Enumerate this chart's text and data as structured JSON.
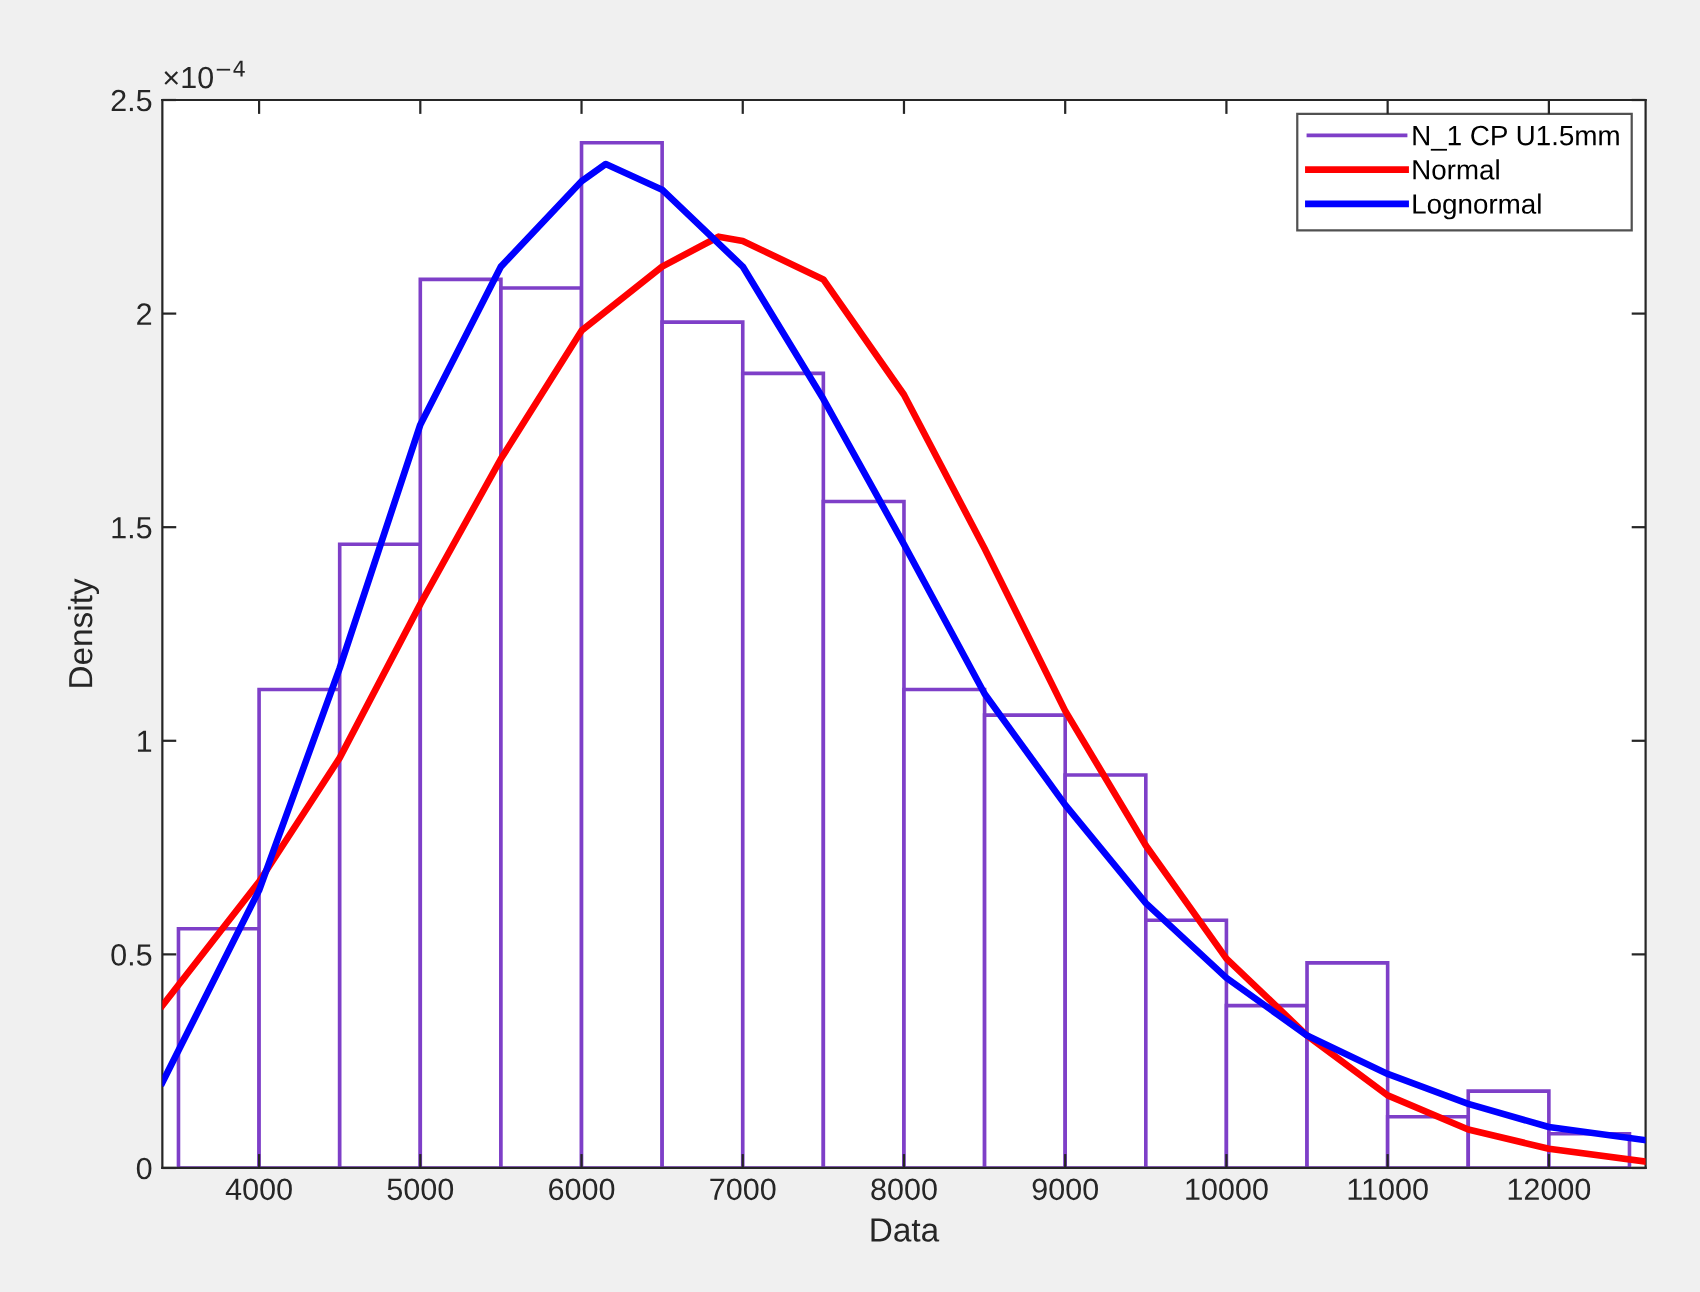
{
  "chart_data": {
    "type": "histogram",
    "xlabel": "Data",
    "ylabel": "Density",
    "annotations": [
      "×10$^{−4}$"
    ],
    "xlim": [
      3400,
      12600
    ],
    "xticks": [
      4000,
      5000,
      6000,
      7000,
      8000,
      9000,
      10000,
      11000,
      12000
    ],
    "ylim": [
      0,
      2.5
    ],
    "yticks": [
      0,
      0.5,
      1,
      1.5,
      2,
      2.5
    ],
    "grid": false,
    "legend": "top right",
    "series": [
      {
        "name": "N_1 CP U1.5mm",
        "color": "#7e3fc8",
        "bins": [
          3500,
          4000,
          4500,
          5000,
          5500,
          6000,
          6500,
          7000,
          7500,
          8000,
          8500,
          9000,
          9500,
          10000,
          10500,
          11000,
          11500,
          12000,
          12500
        ],
        "values": [
          0.56,
          1.12,
          1.46,
          2.08,
          2.06,
          2.4,
          1.98,
          1.86,
          1.56,
          1.12,
          1.06,
          0.92,
          0.58,
          0.38,
          0.48,
          0.12,
          0.18,
          0.08
        ]
      },
      {
        "name": "Normal",
        "type": "line",
        "color": "#ff0000",
        "x": [
          3400,
          4000,
          4500,
          5000,
          5500,
          6000,
          6500,
          6850,
          7000,
          7500,
          8000,
          8500,
          9000,
          9500,
          10000,
          10500,
          11000,
          11500,
          12000,
          12600
        ],
        "values": [
          0.38,
          0.67,
          0.96,
          1.32,
          1.66,
          1.96,
          2.11,
          2.18,
          2.17,
          2.08,
          1.81,
          1.45,
          1.07,
          0.755,
          0.49,
          0.31,
          0.17,
          0.09,
          0.045,
          0.015
        ]
      },
      {
        "name": "Lognormal",
        "type": "line",
        "color": "#0000ff",
        "x": [
          3400,
          4000,
          4500,
          5000,
          5500,
          6000,
          6150,
          6500,
          7000,
          7500,
          8000,
          8500,
          9000,
          9500,
          10000,
          10500,
          11000,
          11500,
          12000,
          12600
        ],
        "values": [
          0.2,
          0.65,
          1.17,
          1.74,
          2.11,
          2.31,
          2.35,
          2.29,
          2.11,
          1.8,
          1.46,
          1.11,
          0.85,
          0.62,
          0.445,
          0.31,
          0.22,
          0.15,
          0.096,
          0.065
        ]
      }
    ]
  }
}
